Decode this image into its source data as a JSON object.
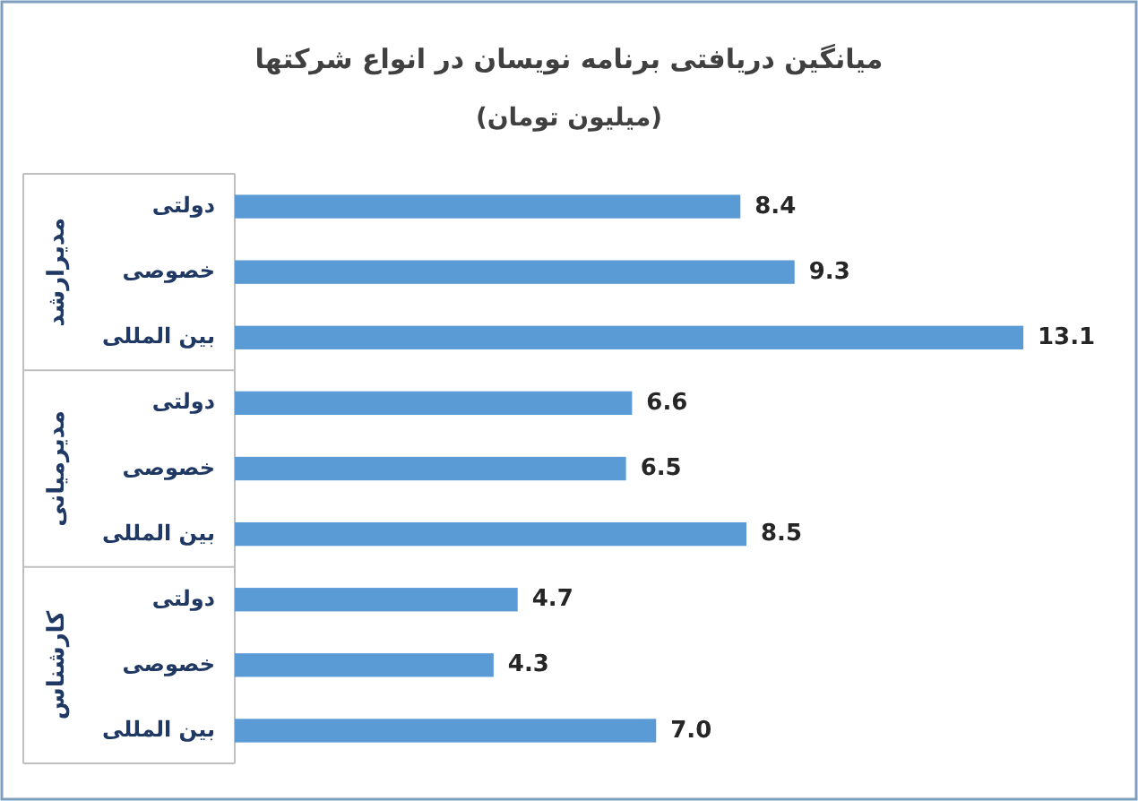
{
  "chart_data": {
    "type": "bar",
    "orientation": "horizontal",
    "title": "میانگین دریافتی برنامه نویسان در انواع شرکتها",
    "subtitle": "(میلیون تومان)",
    "categories": [
      "دولتی",
      "خصوصی",
      "بین المللی",
      "دولتی",
      "خصوصی",
      "بین المللی",
      "دولتی",
      "خصوصی",
      "بین المللی"
    ],
    "series": [
      {
        "color": "#5b9bd5",
        "values": [
          8.4,
          9.3,
          13.1,
          6.6,
          6.5,
          8.5,
          4.7,
          4.3,
          7.0
        ],
        "value_labels": [
          "8.4",
          "9.3",
          "13.1",
          "6.6",
          "6.5",
          "8.5",
          "4.7",
          "4.3",
          "7.0"
        ]
      }
    ],
    "annotations": [
      "مدیرارشد",
      "مدیرمیانی",
      "کارشناس"
    ],
    "data_labels": true
  }
}
